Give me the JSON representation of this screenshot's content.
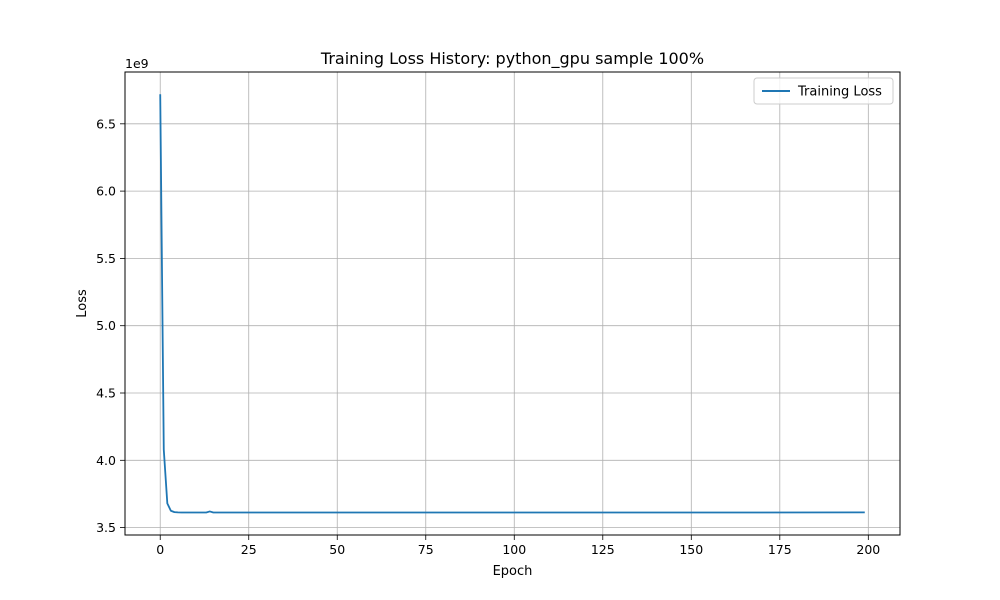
{
  "chart_data": {
    "type": "line",
    "title": "Training Loss History: python_gpu sample 100%",
    "xlabel": "Epoch",
    "ylabel": "Loss",
    "y_offset_text": "1e9",
    "xlim": [
      -9.95,
      208.95
    ],
    "ylim": [
      3.445,
      6.885
    ],
    "x_ticks": [
      0,
      25,
      50,
      75,
      100,
      125,
      150,
      175,
      200
    ],
    "x_tick_labels": [
      "0",
      "25",
      "50",
      "75",
      "100",
      "125",
      "150",
      "175",
      "200"
    ],
    "y_ticks": [
      3.5,
      4.0,
      4.5,
      5.0,
      5.5,
      6.0,
      6.5
    ],
    "y_tick_labels": [
      "3.5",
      "4.0",
      "4.5",
      "5.0",
      "5.5",
      "6.0",
      "6.5"
    ],
    "grid": true,
    "legend_position": "top-right",
    "colors": {
      "series": "#1f77b4",
      "grid": "#b0b0b0",
      "axes": "#000000"
    },
    "series": [
      {
        "name": "Training Loss",
        "x": [
          0,
          1,
          2,
          3,
          4,
          5,
          6,
          8,
          10,
          13,
          14,
          15,
          20,
          40,
          80,
          120,
          160,
          199
        ],
        "y": [
          6.72,
          4.08,
          3.68,
          3.625,
          3.615,
          3.613,
          3.612,
          3.612,
          3.612,
          3.612,
          3.62,
          3.612,
          3.612,
          3.612,
          3.612,
          3.612,
          3.612,
          3.613
        ]
      }
    ]
  }
}
